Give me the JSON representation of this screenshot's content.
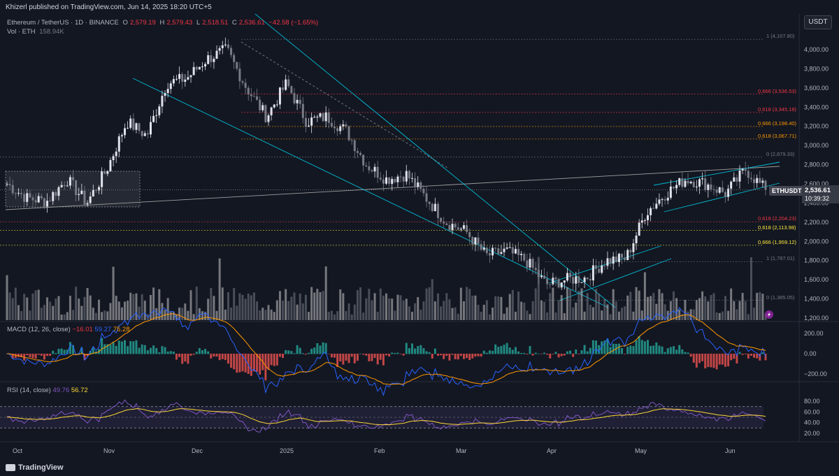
{
  "header": {
    "publisher": "Khizerl published on TradingView.com, Jun 14, 2025 18:20 UTC+5",
    "currency_badge": "USDT"
  },
  "legend": {
    "symbol": "Ethereum / TetherUS · 1D · BINANCE",
    "o_label": "O",
    "o_value": "2,579.19",
    "h_label": "H",
    "h_value": "2,579.43",
    "l_label": "L",
    "l_value": "2,518.51",
    "c_label": "C",
    "c_value": "2,536.61",
    "change": "−42.58 (−1.65%)",
    "vol_label": "Vol · ETH",
    "vol_value": "158.94K"
  },
  "price_tags": {
    "symbol": "ETHUSDT",
    "last": "2,536.61",
    "countdown": "10:39:32"
  },
  "macd": {
    "label": "MACD (12, 26, close)",
    "hist": "−16.01",
    "macd": "59.27",
    "signal": "75.28"
  },
  "rsi": {
    "label": "RSI (14, close)",
    "rsi": "49.76",
    "ma": "56.72"
  },
  "footer": {
    "logo": "TradingView"
  },
  "fib_levels": [
    {
      "label": "1 (4,107.80)",
      "color": "#787b86",
      "price": 4107.8
    },
    {
      "label": "0.666 (3,536.53)",
      "color": "#f23645",
      "price": 3536.53
    },
    {
      "label": "0.618 (3,345.18)",
      "color": "#f23645",
      "price": 3345.18
    },
    {
      "label": "0.666 (3,198.40)",
      "color": "#ff9800",
      "price": 3198.4
    },
    {
      "label": "0.618 (3,067.71)",
      "color": "#ff9800",
      "price": 3067.71
    },
    {
      "label": "0 (2,879.33)",
      "color": "#787b86",
      "price": 2879.33
    },
    {
      "label": "0.618 (2,204.23)",
      "color": "#f23645",
      "price": 2204.23
    },
    {
      "label": "0.618 (2,113.98)",
      "color": "#ffeb3b",
      "price": 2113.98
    },
    {
      "label": "0.666 (1,959.12)",
      "color": "#ffeb3b",
      "price": 1959.12
    },
    {
      "label": "1 (1,787.01)",
      "color": "#787b86",
      "price": 1787.01
    },
    {
      "label": "0 (1,385.05)",
      "color": "#787b86",
      "price": 1385.05
    }
  ],
  "chart_data": [
    {
      "type": "candlestick",
      "title": "Ethereum / TetherUS · 1D · BINANCE",
      "y_axis_ticks": [
        "4,000.00",
        "3,800.00",
        "3,600.00",
        "3,400.00",
        "3,200.00",
        "3,000.00",
        "2,800.00",
        "2,600.00",
        "2,400.00",
        "2,200.00",
        "2,000.00",
        "1,800.00",
        "1,600.00",
        "1,400.00",
        "1,200.00"
      ],
      "x_axis_ticks": [
        "Oct",
        "Nov",
        "Dec",
        "2025",
        "Feb",
        "Mar",
        "Apr",
        "May",
        "Jun"
      ],
      "ylim": [
        1200,
        4150
      ],
      "grid": false,
      "series": [
        {
          "name": "ETHUSDT",
          "close_path": [
            [
              "Oct",
              2600
            ],
            [
              "Oct",
              2450
            ],
            [
              "Oct",
              2420
            ],
            [
              "Oct",
              2650
            ],
            [
              "Nov",
              2400
            ],
            [
              "Nov",
              2750
            ],
            [
              "Nov",
              3250
            ],
            [
              "Nov",
              3100
            ],
            [
              "Dec",
              3650
            ],
            [
              "Dec",
              3700
            ],
            [
              "Dec",
              3900
            ],
            [
              "Dec",
              4000
            ],
            [
              "Dec",
              3600
            ],
            [
              "2025",
              3300
            ],
            [
              "2025",
              3650
            ],
            [
              "2025",
              3250
            ],
            [
              "2025",
              3300
            ],
            [
              "2025",
              3150
            ],
            [
              "Feb",
              2800
            ],
            [
              "Feb",
              2650
            ],
            [
              "Feb",
              2700
            ],
            [
              "Feb",
              2450
            ],
            [
              "Mar",
              2200
            ],
            [
              "Mar",
              2100
            ],
            [
              "Mar",
              1850
            ],
            [
              "Mar",
              1900
            ],
            [
              "Apr",
              1800
            ],
            [
              "Apr",
              1550
            ],
            [
              "Apr",
              1600
            ],
            [
              "Apr",
              1620
            ],
            [
              "Apr",
              1800
            ],
            [
              "May",
              1820
            ],
            [
              "May",
              2300
            ],
            [
              "May",
              2500
            ],
            [
              "May",
              2650
            ],
            [
              "Jun",
              2600
            ],
            [
              "Jun",
              2500
            ],
            [
              "Jun",
              2750
            ],
            [
              "Jun",
              2537
            ]
          ]
        }
      ],
      "last_close": 2536.61
    },
    {
      "type": "line",
      "title": "MACD (12, 26, close)",
      "y_axis_ticks": [
        "200.00",
        "0.00",
        "−200.00"
      ],
      "series": [
        {
          "name": "MACD",
          "color": "#2962ff",
          "last": 59.27
        },
        {
          "name": "Signal",
          "color": "#ff9800",
          "last": 75.28
        },
        {
          "name": "Histogram",
          "last": -16.01
        }
      ]
    },
    {
      "type": "line",
      "title": "RSI (14, close)",
      "y_axis_ticks": [
        "80.00",
        "60.00",
        "40.00",
        "20.00"
      ],
      "band": [
        30,
        70
      ],
      "series": [
        {
          "name": "RSI",
          "color": "#7e57c2",
          "last": 49.76
        },
        {
          "name": "RSI-based MA",
          "color": "#fdd835",
          "last": 56.72
        }
      ]
    }
  ]
}
